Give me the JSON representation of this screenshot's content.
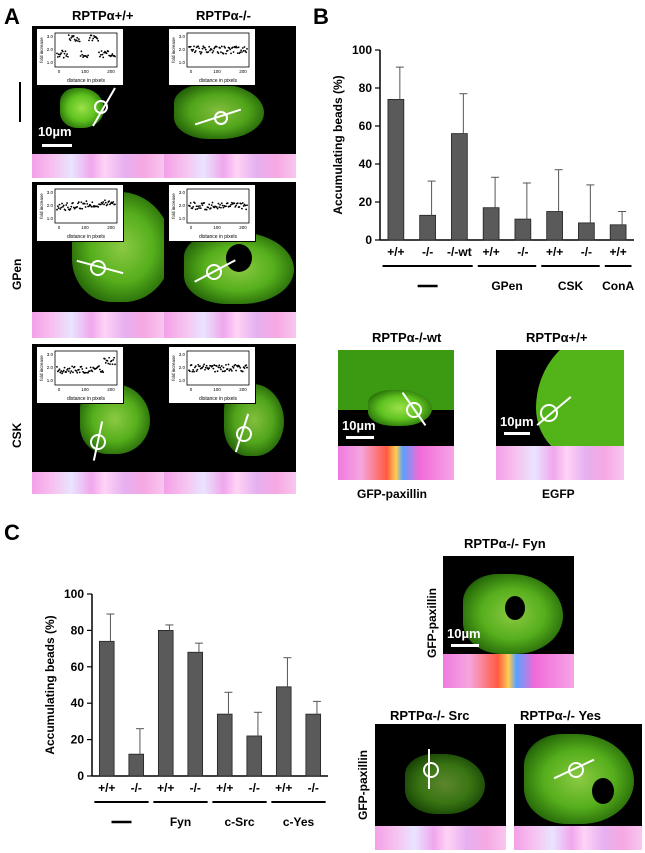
{
  "panels": {
    "A": {
      "letter": "A",
      "col_headers": [
        "RPTPα+/+",
        "RPTPα-/-"
      ],
      "row_labels": [
        "GPen",
        "CSK"
      ],
      "scale_label": "10µm",
      "inset_ylabel": "fold increase",
      "inset_xlabel": "distance in pixels",
      "inset_yticks": [
        "3.0",
        "2.0",
        "1.0"
      ],
      "inset_xticks": [
        "0",
        "100",
        "200"
      ]
    },
    "B": {
      "letter": "B",
      "micro_headers": [
        "RPTPα-/-wt",
        "RPTPα+/+"
      ],
      "micro_captions": [
        "GFP-paxillin",
        "EGFP"
      ],
      "scale_label": "10µm",
      "group_labels": [
        "—",
        "GPen",
        "CSK",
        "ConA"
      ]
    },
    "C": {
      "letter": "C",
      "micro_headers": [
        "RPTPα-/- Fyn",
        "RPTPα-/- Src",
        "RPTPα-/- Yes"
      ],
      "side_label": "GFP-paxillin",
      "scale_label": "10µm",
      "group_labels": [
        "—",
        "Fyn",
        "c-Src",
        "c-Yes"
      ]
    }
  },
  "chart_data": [
    {
      "type": "bar",
      "panel": "B",
      "ylabel": "Accumulating beads (%)",
      "ylim": [
        0,
        100
      ],
      "yticks": [
        0,
        20,
        40,
        60,
        80,
        100
      ],
      "categories": [
        "+/+",
        "-/-",
        "-/-wt",
        "+/+",
        "-/-",
        "+/+",
        "-/-",
        "+/+"
      ],
      "values": [
        74,
        13,
        56,
        17,
        11,
        15,
        9,
        8
      ],
      "errors": [
        17,
        18,
        21,
        16,
        19,
        22,
        20,
        7
      ],
      "groups": [
        {
          "label": "—",
          "span": [
            0,
            2
          ]
        },
        {
          "label": "GPen",
          "span": [
            3,
            4
          ]
        },
        {
          "label": "CSK",
          "span": [
            5,
            6
          ]
        },
        {
          "label": "ConA",
          "span": [
            7,
            7
          ]
        }
      ],
      "bar_color": "#5a5a5a"
    },
    {
      "type": "bar",
      "panel": "C",
      "ylabel": "Accumulating beads (%)",
      "ylim": [
        0,
        100
      ],
      "yticks": [
        0,
        20,
        40,
        60,
        80,
        100
      ],
      "categories": [
        "+/+",
        "-/-",
        "+/+",
        "-/-",
        "+/+",
        "-/-",
        "+/+",
        "-/-"
      ],
      "values": [
        74,
        12,
        80,
        68,
        34,
        22,
        49,
        34
      ],
      "errors": [
        15,
        14,
        3,
        5,
        12,
        13,
        16,
        7
      ],
      "groups": [
        {
          "label": "—",
          "span": [
            0,
            1
          ]
        },
        {
          "label": "Fyn",
          "span": [
            2,
            3
          ]
        },
        {
          "label": "c-Src",
          "span": [
            4,
            5
          ]
        },
        {
          "label": "c-Yes",
          "span": [
            6,
            7
          ]
        }
      ],
      "bar_color": "#5a5a5a"
    }
  ]
}
